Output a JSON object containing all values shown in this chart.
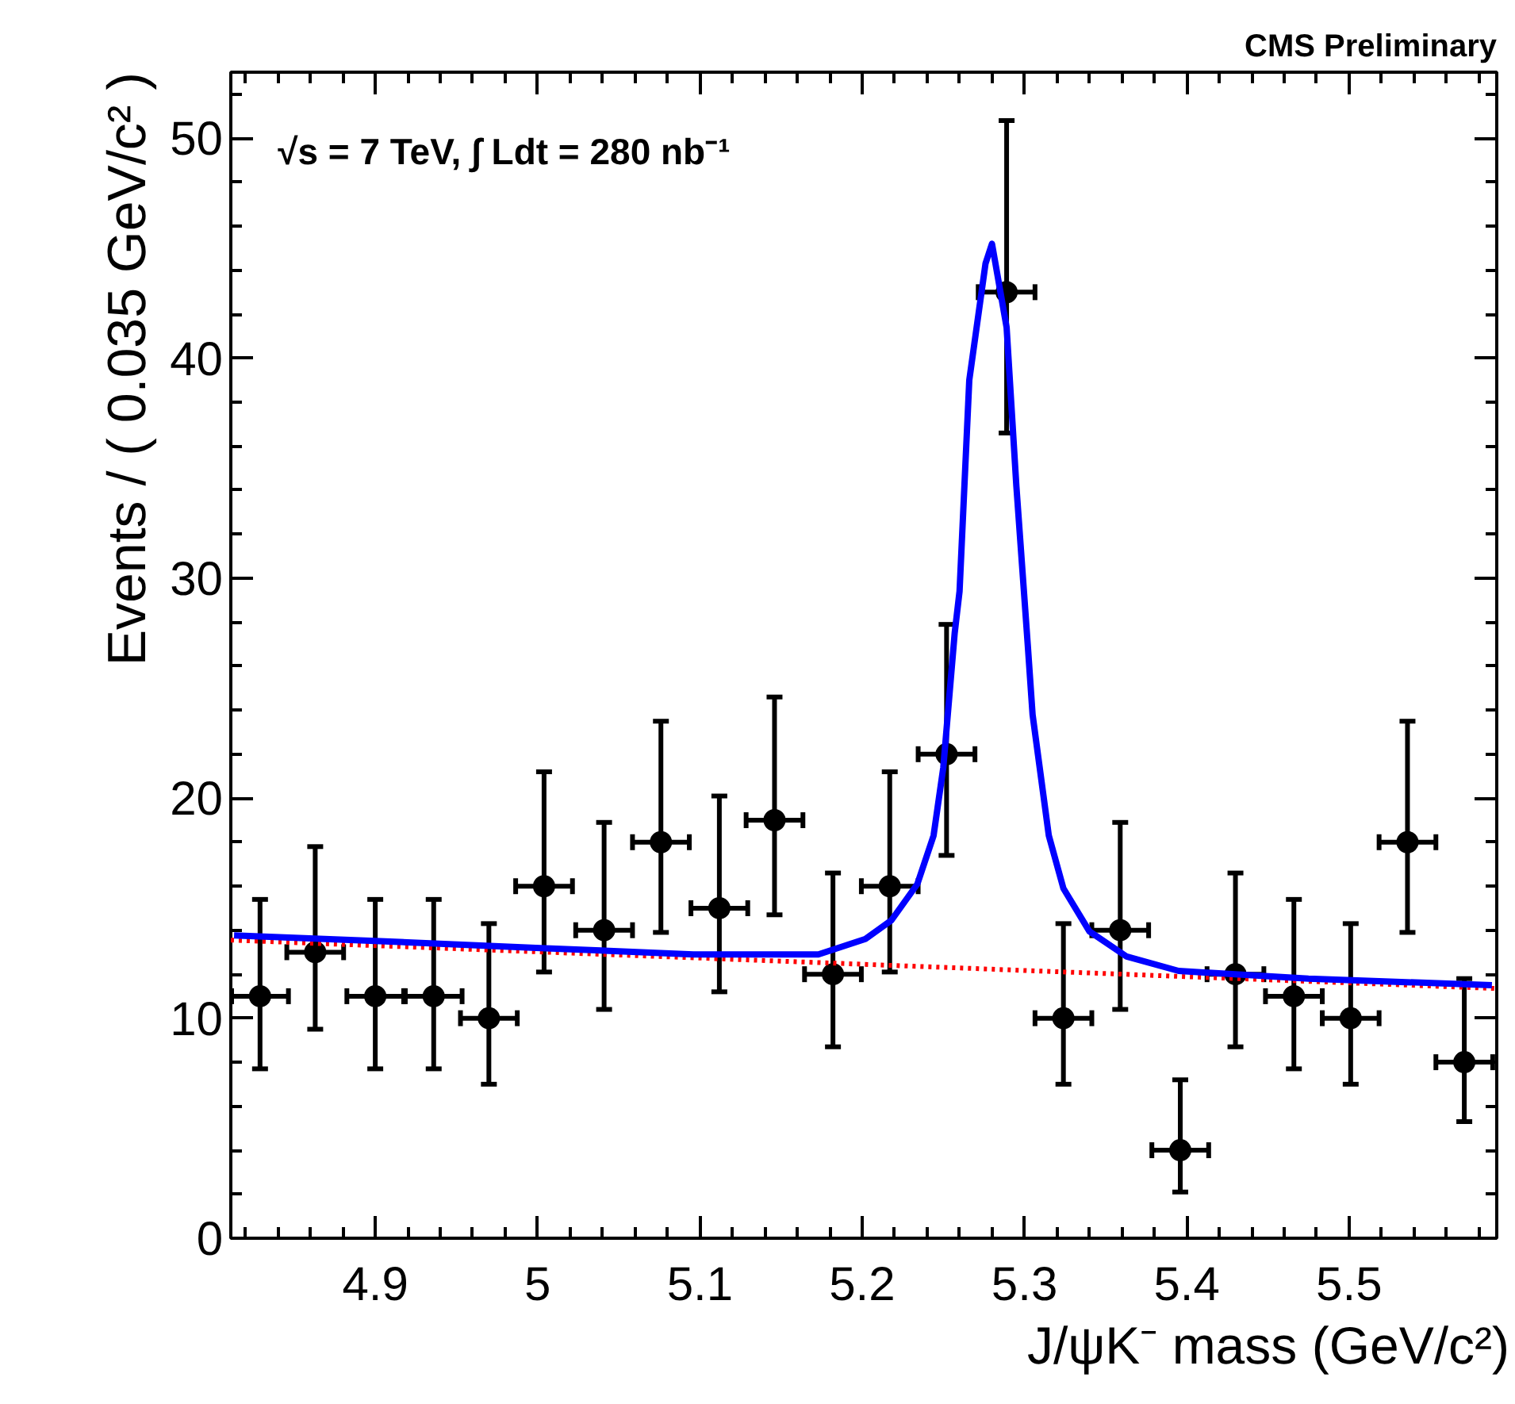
{
  "chart_data": {
    "type": "scatter",
    "xlabel": "J/ψK⁻ mass (GeV/c²)",
    "ylabel": "Events / ( 0.035 GeV/c² )",
    "annotations": [
      "CMS Preliminary",
      "√s = 7 TeV, ∫ Ldt = 280 nb⁻¹"
    ],
    "xlim": [
      4.811,
      5.591
    ],
    "ylim": [
      0,
      53
    ],
    "xticks": [
      4.9,
      5,
      5.1,
      5.2,
      5.3,
      5.4,
      5.5
    ],
    "yticks": [
      0,
      10,
      20,
      30,
      40,
      50
    ],
    "grid": false,
    "series": [
      {
        "color": "#000000",
        "marker": "circle",
        "x": [
          4.829,
          4.863,
          4.9,
          4.936,
          4.97,
          5.004,
          5.041,
          5.076,
          5.112,
          5.146,
          5.182,
          5.217,
          5.252,
          5.289,
          5.324,
          5.359,
          5.396,
          5.43,
          5.466,
          5.501,
          5.536,
          5.571
        ],
        "values": [
          11,
          13,
          11,
          11,
          10,
          16,
          14,
          18,
          15,
          19,
          12,
          16,
          22,
          43,
          10,
          14,
          4,
          12,
          11,
          10,
          18,
          8
        ],
        "errors": [
          [
            7.7,
            15.4
          ],
          [
            9.5,
            17.8
          ],
          [
            7.7,
            15.4
          ],
          [
            7.7,
            15.4
          ],
          [
            7.0,
            14.3
          ],
          [
            12.1,
            21.2
          ],
          [
            10.4,
            18.9
          ],
          [
            13.9,
            23.5
          ],
          [
            11.2,
            20.1
          ],
          [
            14.7,
            24.6
          ],
          [
            8.7,
            16.6
          ],
          [
            12.1,
            21.2
          ],
          [
            17.4,
            27.9
          ],
          [
            36.6,
            50.8
          ],
          [
            7.0,
            14.3
          ],
          [
            10.4,
            18.9
          ],
          [
            2.1,
            7.2
          ],
          [
            8.7,
            16.6
          ],
          [
            7.7,
            15.4
          ],
          [
            7.0,
            14.3
          ],
          [
            13.9,
            23.5
          ],
          [
            5.3,
            11.8
          ]
        ],
        "xerrors": [
          0.0175,
          0.0175,
          0.0175,
          0.0175,
          0.0175,
          0.0175,
          0.0175,
          0.0175,
          0.0175,
          0.0175,
          0.0175,
          0.0175,
          0.0175,
          0.0175,
          0.0175,
          0.0175,
          0.0175,
          0.0175,
          0.0175,
          0.0175,
          0.0175,
          0.0175
        ]
      },
      {
        "type": "line",
        "color": "#ff0000",
        "line_style": "dotted",
        "x": [
          4.811,
          5.591
        ],
        "values": [
          13.55,
          11.35
        ]
      },
      {
        "type": "line",
        "color": "#0000ff",
        "line_style": "solid",
        "x": [
          4.813,
          4.903,
          4.999,
          5.096,
          5.173,
          5.202,
          5.218,
          5.234,
          5.244,
          5.25,
          5.257,
          5.26,
          5.266,
          5.276,
          5.28,
          5.289,
          5.295,
          5.302,
          5.305,
          5.315,
          5.324,
          5.34,
          5.363,
          5.395,
          5.475,
          5.588
        ],
        "values": [
          13.76,
          13.5,
          13.2,
          12.9,
          12.9,
          13.6,
          14.45,
          16.1,
          18.3,
          21.4,
          27.5,
          29.4,
          39.0,
          44.3,
          45.2,
          41.4,
          34.2,
          27.0,
          23.8,
          18.3,
          15.9,
          13.95,
          12.8,
          12.15,
          11.8,
          11.5
        ]
      }
    ]
  }
}
